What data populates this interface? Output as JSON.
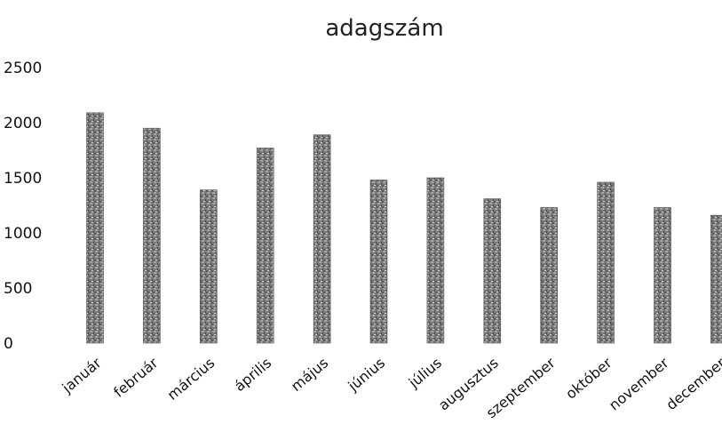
{
  "chart_data": {
    "type": "bar",
    "title": "adagszám",
    "xlabel": "",
    "ylabel": "",
    "categories": [
      "január",
      "február",
      "március",
      "április",
      "május",
      "június",
      "július",
      "augusztus",
      "szeptember",
      "október",
      "november",
      "december"
    ],
    "values": [
      2090,
      1950,
      1390,
      1770,
      1890,
      1480,
      1500,
      1310,
      1230,
      1460,
      1230,
      1160
    ],
    "ylim": [
      0,
      2500
    ],
    "yticks": [
      "0",
      "500",
      "1000",
      "1500",
      "2000",
      "2500"
    ],
    "grid": false,
    "legend": "none",
    "bar_color": "#777777"
  }
}
